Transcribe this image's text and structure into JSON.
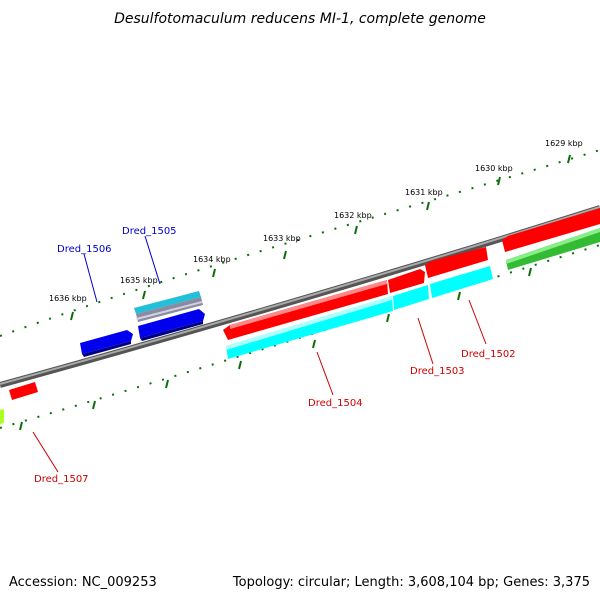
{
  "title": "Desulfotomaculum reducens MI-1, complete genome",
  "footer": {
    "accession": "Accession: NC_009253",
    "summary": "Topology: circular; Length: 3,608,104 bp; Genes: 3,375"
  },
  "kbp_labels": [
    "1629 kbp",
    "1630 kbp",
    "1631 kbp",
    "1632 kbp",
    "1633 kbp",
    "1634 kbp",
    "1635 kbp",
    "1636 kbp"
  ],
  "gene_labels": {
    "dred_1502": "Dred_1502",
    "dred_1503": "Dred_1503",
    "dred_1504": "Dred_1504",
    "dred_1505": "Dred_1505",
    "dred_1506": "Dred_1506",
    "dred_1507": "Dred_1507"
  },
  "colors": {
    "forward_label": "#0000cc",
    "reverse_label": "#cc0000",
    "cds_red": "#ff0000",
    "cds_blue": "#0000ee",
    "cds_cyan": "#00ffff",
    "cds_green": "#33bb33",
    "cds_yellowgreen": "#aaff22",
    "tick_green": "#0a6e0a",
    "backbone": "#7f7f7f"
  }
}
